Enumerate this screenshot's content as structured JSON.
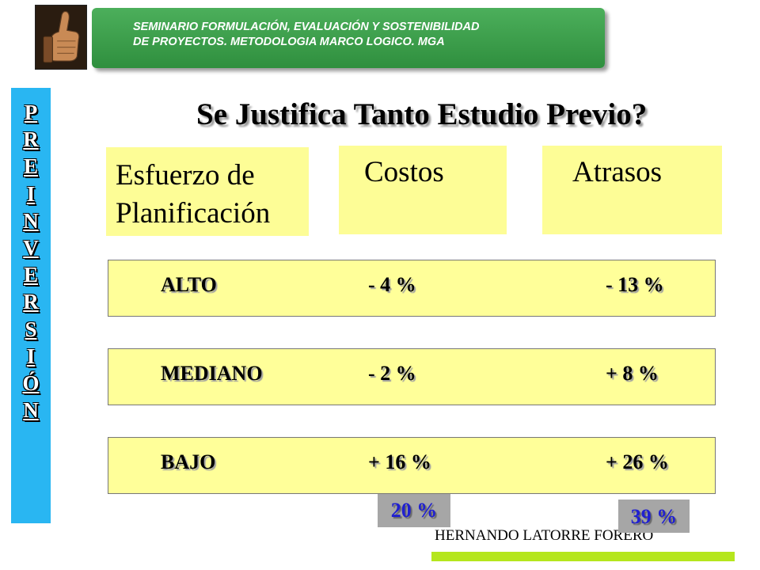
{
  "header": {
    "banner_line1": "SEMINARIO FORMULACIÓN, EVALUACIÓN Y SOSTENIBILIDAD",
    "banner_line2": "DE PROYECTOS. METODOLOGIA MARCO LOGICO. MGA",
    "logo_icon": "thumbs-up-icon"
  },
  "sidebar": {
    "letters": [
      "P",
      "R",
      "E",
      "I",
      "N",
      "V",
      "E",
      "R",
      "S",
      "I",
      "Ó",
      "N"
    ]
  },
  "title": "Se Justifica Tanto Estudio Previo?",
  "columns": {
    "effort_line1": "Esfuerzo de",
    "effort_line2": "Planificación",
    "costs": "Costos",
    "delays": "Atrasos"
  },
  "rows": [
    {
      "level": "ALTO",
      "cost": "- 4 %",
      "delay": "- 13 %"
    },
    {
      "level": "MEDIANO",
      "cost": "- 2 %",
      "delay": "+ 8 %"
    },
    {
      "level": "BAJO",
      "cost": "+ 16 %",
      "delay": "+ 26 %"
    }
  ],
  "totals": {
    "costs": "20 %",
    "delays": "39 %"
  },
  "footer": {
    "author": "HERNANDO LATORRE FORERO"
  },
  "colors": {
    "banner_green": "#2f8f3e",
    "sidebar_blue": "#29b6f2",
    "box_yellow": "#fdfd96",
    "total_text_blue": "#2020d0",
    "footer_bar": "#b5e61d"
  }
}
